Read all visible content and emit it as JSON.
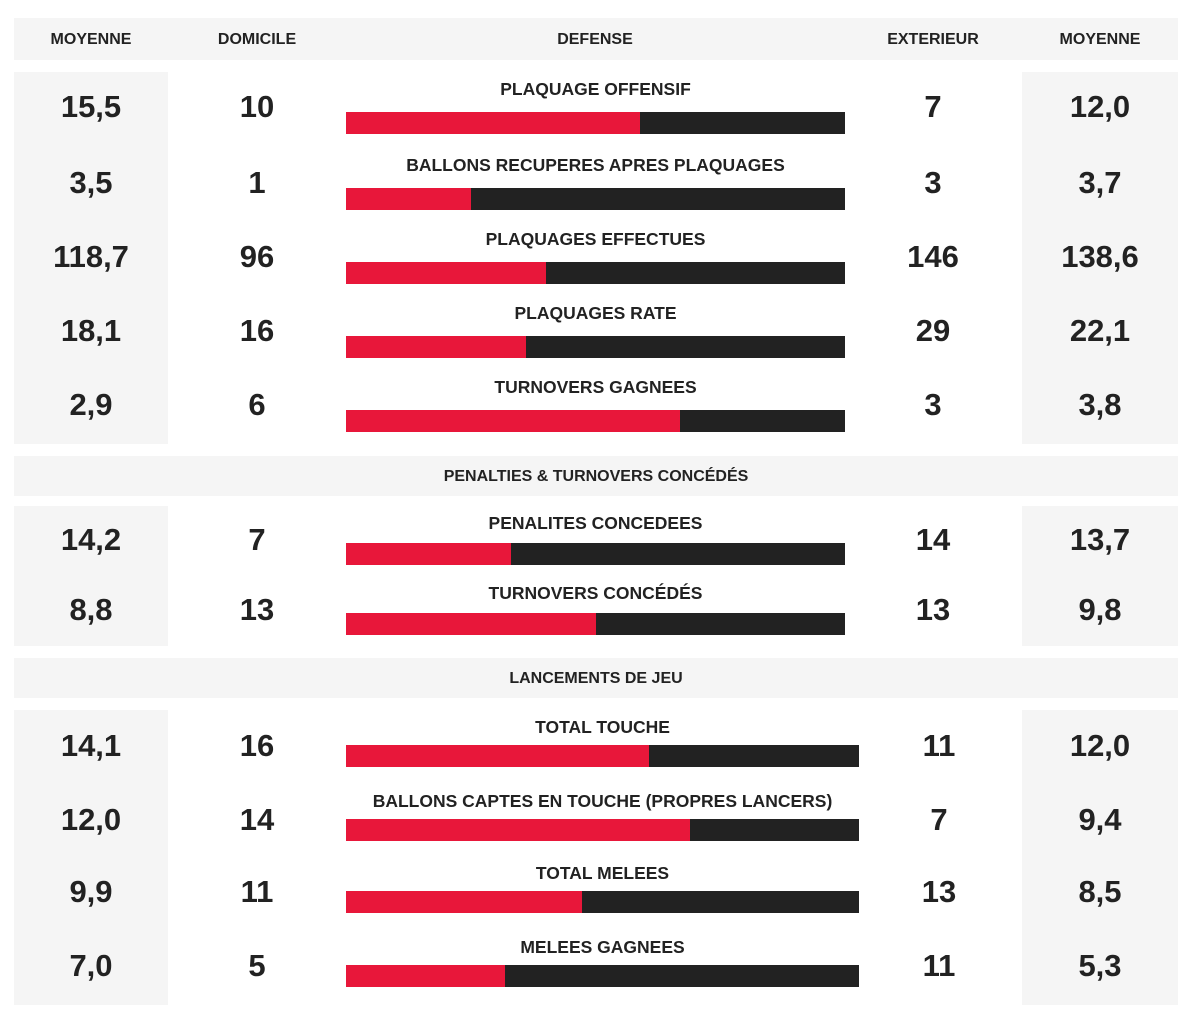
{
  "header": {
    "col1": "MOYENNE",
    "col2": "DOMICILE",
    "col3": "DEFENSE",
    "col4": "EXTERIEUR",
    "col5": "MOYENNE"
  },
  "sections": [
    {
      "title": "",
      "rows": [
        {
          "label": "PLAQUAGE OFFENSIF",
          "home_avg": "15,5",
          "home": "10",
          "away": "7",
          "away_avg": "12,0",
          "home_share": 0.59
        },
        {
          "label": "BALLONS RECUPERES APRES PLAQUAGES",
          "home_avg": "3,5",
          "home": "1",
          "away": "3",
          "away_avg": "3,7",
          "home_share": 0.25
        },
        {
          "label": "PLAQUAGES EFFECTUES",
          "home_avg": "118,7",
          "home": "96",
          "away": "146",
          "away_avg": "138,6",
          "home_share": 0.4
        },
        {
          "label": "PLAQUAGES RATE",
          "home_avg": "18,1",
          "home": "16",
          "away": "29",
          "away_avg": "22,1",
          "home_share": 0.36
        },
        {
          "label": "TURNOVERS GAGNEES",
          "home_avg": "2,9",
          "home": "6",
          "away": "3",
          "away_avg": "3,8",
          "home_share": 0.67
        }
      ]
    },
    {
      "title": "PENALTIES & TURNOVERS CONCÉDÉS",
      "rows": [
        {
          "label": "PENALITES CONCEDEES",
          "home_avg": "14,2",
          "home": "7",
          "away": "14",
          "away_avg": "13,7",
          "home_share": 0.33
        },
        {
          "label": "TURNOVERS CONCÉDÉS",
          "home_avg": "8,8",
          "home": "13",
          "away": "13",
          "away_avg": "9,8",
          "home_share": 0.5
        }
      ]
    },
    {
      "title": "LANCEMENTS DE JEU",
      "rows": [
        {
          "label": "TOTAL TOUCHE",
          "home_avg": "14,1",
          "home": "16",
          "away": "11",
          "away_avg": "12,0",
          "home_share": 0.59
        },
        {
          "label": "BALLONS CAPTES EN TOUCHE (PROPRES LANCERS)",
          "home_avg": "12,0",
          "home": "14",
          "away": "7",
          "away_avg": "9,4",
          "home_share": 0.67
        },
        {
          "label": "TOTAL MELEES",
          "home_avg": "9,9",
          "home": "11",
          "away": "13",
          "away_avg": "8,5",
          "home_share": 0.46
        },
        {
          "label": "MELEES GAGNEES",
          "home_avg": "7,0",
          "home": "5",
          "away": "11",
          "away_avg": "5,3",
          "home_share": 0.31
        }
      ]
    }
  ],
  "colors": {
    "home_bar": "#e8173a",
    "away_bar": "#222222",
    "panel_bg": "#f5f5f5"
  }
}
